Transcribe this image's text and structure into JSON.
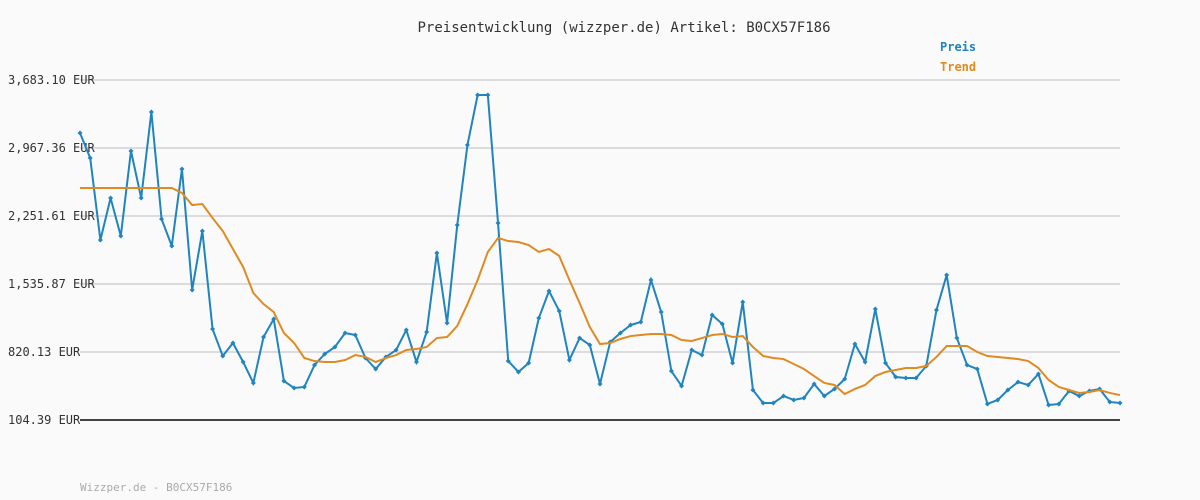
{
  "chart_data": {
    "type": "line",
    "title": "Preisentwicklung (wizzper.de) Artikel: B0CX57F186",
    "footer": "Wizzper.de - B0CX57F186",
    "ylim": [
      104.39,
      3683.1
    ],
    "yticks": [
      {
        "value": 104.39,
        "label": "104.39 EUR"
      },
      {
        "value": 820.13,
        "label": "820.13 EUR"
      },
      {
        "value": 1535.87,
        "label": "1,535.87 EUR"
      },
      {
        "value": 2251.61,
        "label": "2,251.61 EUR"
      },
      {
        "value": 2967.36,
        "label": "2,967.36 EUR"
      },
      {
        "value": 3683.1,
        "label": "3,683.10 EUR"
      }
    ],
    "grid": true,
    "legend": "top-right",
    "series": [
      {
        "name": "Preis",
        "color": "#1f84bf",
        "markers": true,
        "values": [
          3125,
          2862,
          1999,
          2441,
          2041,
          2936,
          2441,
          3346,
          2220,
          1936,
          2746,
          1473,
          2094,
          1062,
          778,
          915,
          715,
          494,
          978,
          1167,
          515,
          441,
          452,
          683,
          799,
          873,
          1020,
          999,
          757,
          641,
          768,
          841,
          1052,
          715,
          1031,
          1862,
          1125,
          2157,
          2999,
          3525,
          3525,
          2178,
          725,
          610,
          704,
          1178,
          1462,
          1252,
          736,
          967,
          894,
          483,
          925,
          1020,
          1104,
          1136,
          1578,
          1241,
          620,
          462,
          841,
          788,
          1210,
          1115,
          704,
          1346,
          420,
          283,
          283,
          357,
          315,
          336,
          483,
          357,
          431,
          536,
          904,
          715,
          1273,
          704,
          557,
          546,
          546,
          673,
          1262,
          1630,
          967,
          683,
          641,
          273,
          315,
          420,
          504,
          473,
          589,
          262,
          273,
          410,
          357,
          410,
          431,
          294,
          283
        ]
      },
      {
        "name": "Trend",
        "color": "#e08a22",
        "markers": false,
        "values": [
          2546,
          2546,
          2546,
          2546,
          2546,
          2546,
          2546,
          2546,
          2546,
          2546,
          2494,
          2367,
          2378,
          2231,
          2094,
          1904,
          1715,
          1441,
          1325,
          1241,
          1020,
          915,
          757,
          725,
          715,
          715,
          736,
          788,
          768,
          715,
          757,
          788,
          841,
          852,
          873,
          967,
          978,
          1094,
          1325,
          1578,
          1873,
          2020,
          1988,
          1978,
          1946,
          1873,
          1904,
          1831,
          1578,
          1336,
          1083,
          904,
          915,
          957,
          988,
          999,
          1010,
          1010,
          999,
          946,
          936,
          967,
          999,
          1010,
          978,
          988,
          873,
          778,
          757,
          746,
          694,
          641,
          567,
          494,
          473,
          378,
          431,
          473,
          567,
          610,
          631,
          652,
          652,
          673,
          768,
          883,
          883,
          883,
          820,
          778,
          768,
          757,
          746,
          725,
          652,
          525,
          452,
          420,
          389,
          399,
          420,
          389,
          367
        ]
      }
    ]
  }
}
